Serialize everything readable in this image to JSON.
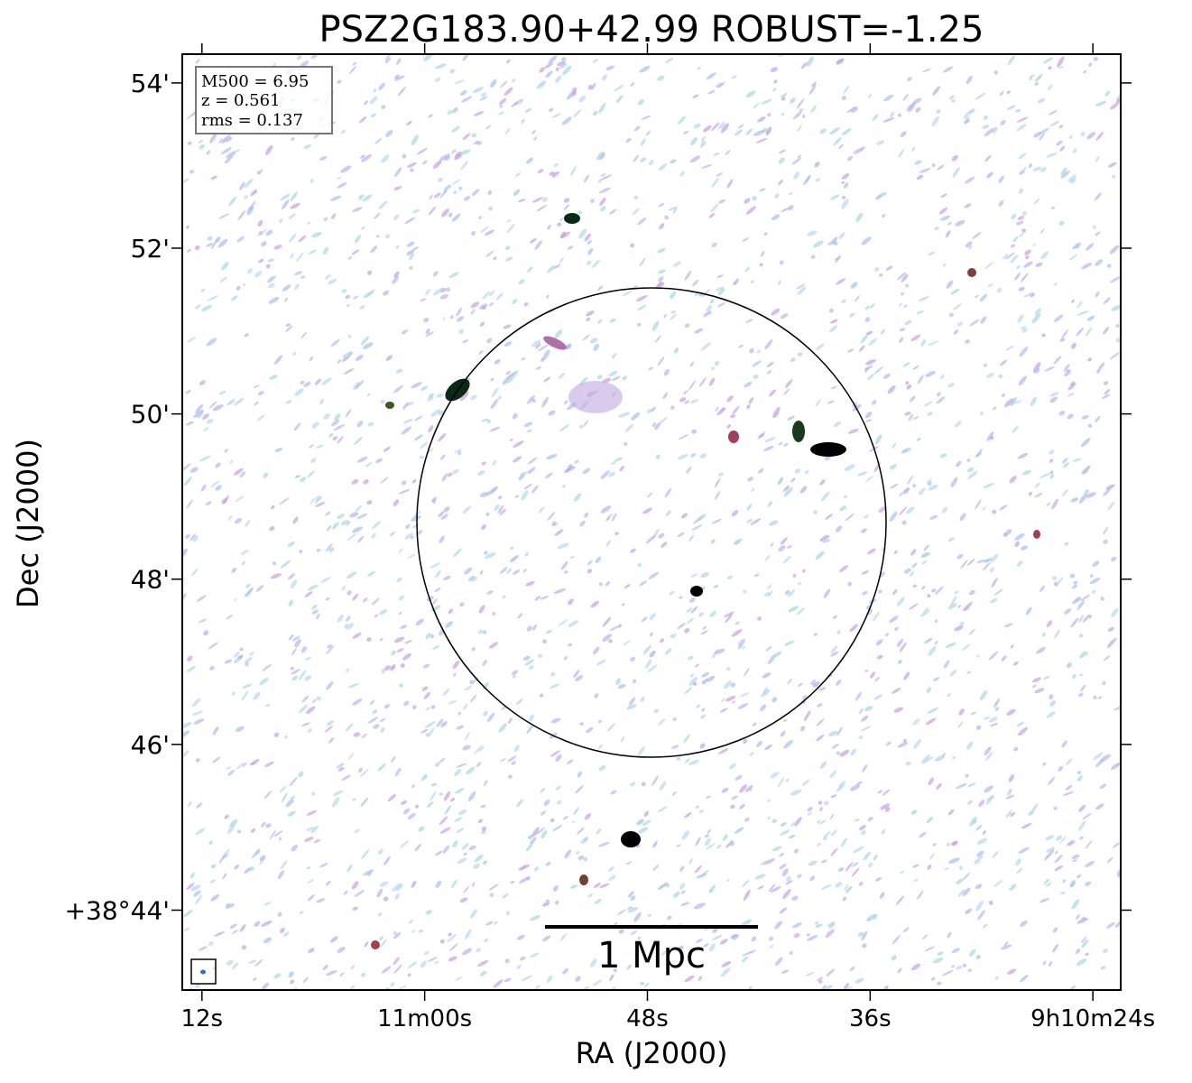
{
  "chart_data": {
    "type": "image",
    "title": "PSZ2G183.90+42.99 ROBUST=-1.25",
    "x_label": "RA (J2000)",
    "y_label": "Dec (J2000)",
    "xlim": [
      73.06,
      22.5
    ],
    "xticks": [
      {
        "value": 72,
        "label": "12s"
      },
      {
        "value": 60,
        "label": "11m00s"
      },
      {
        "value": 48,
        "label": "48s"
      },
      {
        "value": 36,
        "label": "36s"
      },
      {
        "value": 24,
        "label": "9h10m24s"
      }
    ],
    "ylim": [
      38.7172,
      38.9058
    ],
    "yticks": [
      {
        "value": 38.7333,
        "label": "+38°44'"
      },
      {
        "value": 38.7667,
        "label": "46'"
      },
      {
        "value": 38.8,
        "label": "48'"
      },
      {
        "value": 38.8333,
        "label": "50'"
      },
      {
        "value": 38.8667,
        "label": "52'"
      },
      {
        "value": 38.9,
        "label": "54'"
      }
    ],
    "annotations": [
      "M500 = 6.95",
      "z = 0.561",
      "rms = 0.137"
    ],
    "scale_bar_label": "1 Mpc"
  }
}
